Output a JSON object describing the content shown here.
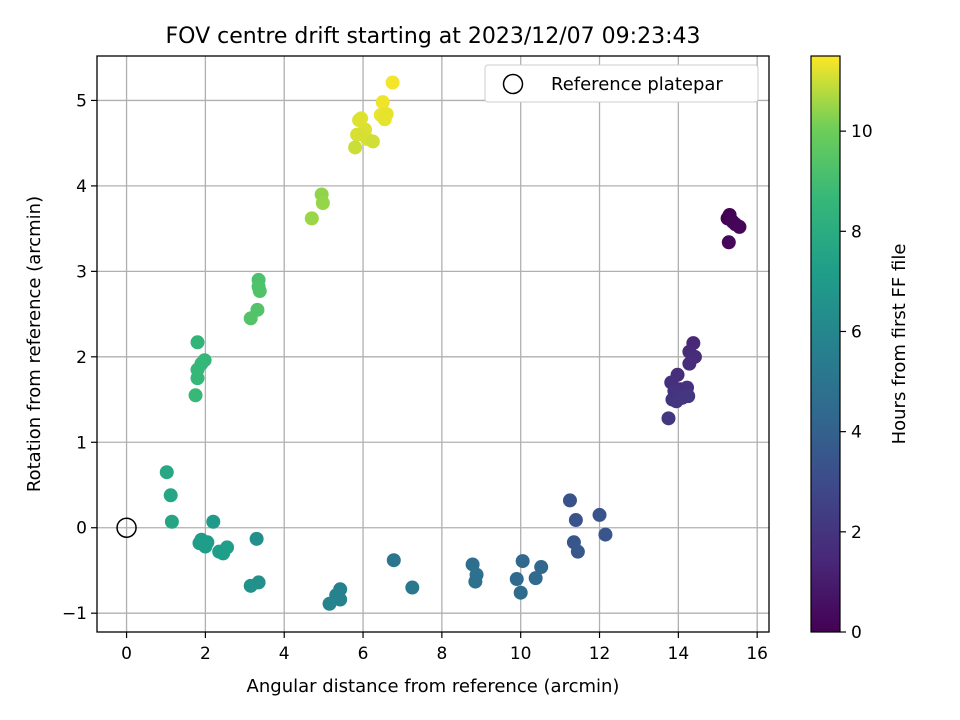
{
  "chart_data": {
    "type": "scatter",
    "title": "FOV centre drift starting at 2023/12/07 09:23:43",
    "xlabel": "Angular distance from reference (arcmin)",
    "ylabel": "Rotation from reference (arcmin)",
    "xlim": [
      -0.75,
      16.3
    ],
    "ylim": [
      -1.22,
      5.52
    ],
    "xticks": [
      0,
      2,
      4,
      6,
      8,
      10,
      12,
      14,
      16
    ],
    "yticks": [
      -1,
      0,
      1,
      2,
      3,
      4,
      5
    ],
    "grid": true,
    "legend": {
      "placement": "top-right",
      "entries": [
        "Reference platepar"
      ]
    },
    "reference": {
      "x": 0,
      "y": 0
    },
    "colorbar": {
      "label": "Hours from first FF file",
      "range": [
        0,
        11.5
      ],
      "ticks": [
        0,
        2,
        4,
        6,
        8,
        10
      ],
      "colormap": "viridis"
    },
    "points": [
      {
        "x": 15.25,
        "y": 3.62,
        "t": 0.0
      },
      {
        "x": 15.3,
        "y": 3.66,
        "t": 0.05
      },
      {
        "x": 15.38,
        "y": 3.58,
        "t": 0.1
      },
      {
        "x": 15.45,
        "y": 3.55,
        "t": 0.15
      },
      {
        "x": 15.55,
        "y": 3.52,
        "t": 0.2
      },
      {
        "x": 15.28,
        "y": 3.34,
        "t": 0.25
      },
      {
        "x": 14.38,
        "y": 2.16,
        "t": 1.5
      },
      {
        "x": 14.28,
        "y": 2.06,
        "t": 1.55
      },
      {
        "x": 14.42,
        "y": 2.0,
        "t": 1.6
      },
      {
        "x": 14.28,
        "y": 1.92,
        "t": 1.65
      },
      {
        "x": 13.98,
        "y": 1.79,
        "t": 1.7
      },
      {
        "x": 13.82,
        "y": 1.7,
        "t": 1.75
      },
      {
        "x": 14.05,
        "y": 1.62,
        "t": 1.8
      },
      {
        "x": 14.22,
        "y": 1.64,
        "t": 1.85
      },
      {
        "x": 13.9,
        "y": 1.6,
        "t": 1.9
      },
      {
        "x": 13.85,
        "y": 1.5,
        "t": 1.95
      },
      {
        "x": 13.95,
        "y": 1.48,
        "t": 2.0
      },
      {
        "x": 14.1,
        "y": 1.52,
        "t": 2.05
      },
      {
        "x": 14.25,
        "y": 1.54,
        "t": 2.1
      },
      {
        "x": 13.75,
        "y": 1.28,
        "t": 2.15
      },
      {
        "x": 11.25,
        "y": 0.32,
        "t": 3.3
      },
      {
        "x": 11.4,
        "y": 0.09,
        "t": 3.35
      },
      {
        "x": 12.0,
        "y": 0.15,
        "t": 3.4
      },
      {
        "x": 12.15,
        "y": -0.08,
        "t": 3.45
      },
      {
        "x": 11.35,
        "y": -0.17,
        "t": 3.5
      },
      {
        "x": 11.45,
        "y": -0.28,
        "t": 3.55
      },
      {
        "x": 10.05,
        "y": -0.39,
        "t": 4.3
      },
      {
        "x": 10.52,
        "y": -0.46,
        "t": 4.35
      },
      {
        "x": 10.38,
        "y": -0.59,
        "t": 4.4
      },
      {
        "x": 9.9,
        "y": -0.6,
        "t": 4.45
      },
      {
        "x": 10.0,
        "y": -0.76,
        "t": 4.5
      },
      {
        "x": 8.78,
        "y": -0.43,
        "t": 4.7
      },
      {
        "x": 8.88,
        "y": -0.55,
        "t": 4.75
      },
      {
        "x": 8.85,
        "y": -0.63,
        "t": 4.8
      },
      {
        "x": 6.78,
        "y": -0.38,
        "t": 5.1
      },
      {
        "x": 7.25,
        "y": -0.7,
        "t": 5.15
      },
      {
        "x": 5.42,
        "y": -0.72,
        "t": 5.7
      },
      {
        "x": 5.32,
        "y": -0.79,
        "t": 5.75
      },
      {
        "x": 5.42,
        "y": -0.84,
        "t": 5.8
      },
      {
        "x": 5.15,
        "y": -0.89,
        "t": 5.85
      },
      {
        "x": 3.3,
        "y": -0.13,
        "t": 6.4
      },
      {
        "x": 3.35,
        "y": -0.64,
        "t": 6.45
      },
      {
        "x": 3.15,
        "y": -0.68,
        "t": 6.5
      },
      {
        "x": 2.2,
        "y": 0.07,
        "t": 7.0
      },
      {
        "x": 2.05,
        "y": -0.17,
        "t": 7.05
      },
      {
        "x": 1.9,
        "y": -0.14,
        "t": 7.1
      },
      {
        "x": 1.85,
        "y": -0.18,
        "t": 7.12
      },
      {
        "x": 2.0,
        "y": -0.22,
        "t": 7.15
      },
      {
        "x": 2.35,
        "y": -0.28,
        "t": 7.18
      },
      {
        "x": 2.45,
        "y": -0.3,
        "t": 7.2
      },
      {
        "x": 2.55,
        "y": -0.23,
        "t": 7.22
      },
      {
        "x": 1.15,
        "y": 0.07,
        "t": 7.6
      },
      {
        "x": 1.12,
        "y": 0.38,
        "t": 7.65
      },
      {
        "x": 1.02,
        "y": 0.65,
        "t": 7.7
      },
      {
        "x": 1.8,
        "y": 2.17,
        "t": 8.5
      },
      {
        "x": 1.98,
        "y": 1.96,
        "t": 8.55
      },
      {
        "x": 1.9,
        "y": 1.92,
        "t": 8.6
      },
      {
        "x": 1.8,
        "y": 1.85,
        "t": 8.62
      },
      {
        "x": 1.8,
        "y": 1.75,
        "t": 8.65
      },
      {
        "x": 1.75,
        "y": 1.55,
        "t": 8.7
      },
      {
        "x": 3.35,
        "y": 2.9,
        "t": 9.2
      },
      {
        "x": 3.35,
        "y": 2.82,
        "t": 9.25
      },
      {
        "x": 3.38,
        "y": 2.77,
        "t": 9.3
      },
      {
        "x": 3.32,
        "y": 2.55,
        "t": 9.35
      },
      {
        "x": 3.15,
        "y": 2.45,
        "t": 9.4
      },
      {
        "x": 4.95,
        "y": 3.9,
        "t": 10.4
      },
      {
        "x": 4.98,
        "y": 3.8,
        "t": 10.45
      },
      {
        "x": 4.7,
        "y": 3.62,
        "t": 10.5
      },
      {
        "x": 6.75,
        "y": 5.21,
        "t": 11.4
      },
      {
        "x": 6.5,
        "y": 4.98,
        "t": 11.35
      },
      {
        "x": 6.45,
        "y": 4.83,
        "t": 11.3
      },
      {
        "x": 6.6,
        "y": 4.84,
        "t": 11.28
      },
      {
        "x": 6.55,
        "y": 4.78,
        "t": 11.25
      },
      {
        "x": 5.95,
        "y": 4.79,
        "t": 11.2
      },
      {
        "x": 5.9,
        "y": 4.77,
        "t": 11.18
      },
      {
        "x": 6.05,
        "y": 4.66,
        "t": 11.15
      },
      {
        "x": 5.85,
        "y": 4.6,
        "t": 11.12
      },
      {
        "x": 6.1,
        "y": 4.55,
        "t": 11.1
      },
      {
        "x": 6.25,
        "y": 4.52,
        "t": 11.05
      },
      {
        "x": 5.8,
        "y": 4.45,
        "t": 11.0
      }
    ]
  }
}
